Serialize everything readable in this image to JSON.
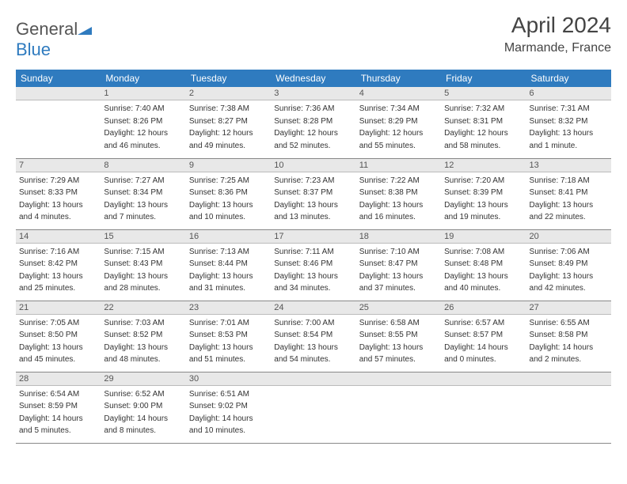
{
  "brand": {
    "general": "General",
    "blue": "Blue"
  },
  "header": {
    "month_title": "April 2024",
    "location": "Marmande, France"
  },
  "weekdays": [
    "Sunday",
    "Monday",
    "Tuesday",
    "Wednesday",
    "Thursday",
    "Friday",
    "Saturday"
  ],
  "colors": {
    "header_bg": "#2f7bbf",
    "daynum_bg": "#e8e8e8",
    "border": "#888"
  },
  "weeks": [
    [
      null,
      {
        "n": "1",
        "sr": "Sunrise: 7:40 AM",
        "ss": "Sunset: 8:26 PM",
        "d1": "Daylight: 12 hours",
        "d2": "and 46 minutes."
      },
      {
        "n": "2",
        "sr": "Sunrise: 7:38 AM",
        "ss": "Sunset: 8:27 PM",
        "d1": "Daylight: 12 hours",
        "d2": "and 49 minutes."
      },
      {
        "n": "3",
        "sr": "Sunrise: 7:36 AM",
        "ss": "Sunset: 8:28 PM",
        "d1": "Daylight: 12 hours",
        "d2": "and 52 minutes."
      },
      {
        "n": "4",
        "sr": "Sunrise: 7:34 AM",
        "ss": "Sunset: 8:29 PM",
        "d1": "Daylight: 12 hours",
        "d2": "and 55 minutes."
      },
      {
        "n": "5",
        "sr": "Sunrise: 7:32 AM",
        "ss": "Sunset: 8:31 PM",
        "d1": "Daylight: 12 hours",
        "d2": "and 58 minutes."
      },
      {
        "n": "6",
        "sr": "Sunrise: 7:31 AM",
        "ss": "Sunset: 8:32 PM",
        "d1": "Daylight: 13 hours",
        "d2": "and 1 minute."
      }
    ],
    [
      {
        "n": "7",
        "sr": "Sunrise: 7:29 AM",
        "ss": "Sunset: 8:33 PM",
        "d1": "Daylight: 13 hours",
        "d2": "and 4 minutes."
      },
      {
        "n": "8",
        "sr": "Sunrise: 7:27 AM",
        "ss": "Sunset: 8:34 PM",
        "d1": "Daylight: 13 hours",
        "d2": "and 7 minutes."
      },
      {
        "n": "9",
        "sr": "Sunrise: 7:25 AM",
        "ss": "Sunset: 8:36 PM",
        "d1": "Daylight: 13 hours",
        "d2": "and 10 minutes."
      },
      {
        "n": "10",
        "sr": "Sunrise: 7:23 AM",
        "ss": "Sunset: 8:37 PM",
        "d1": "Daylight: 13 hours",
        "d2": "and 13 minutes."
      },
      {
        "n": "11",
        "sr": "Sunrise: 7:22 AM",
        "ss": "Sunset: 8:38 PM",
        "d1": "Daylight: 13 hours",
        "d2": "and 16 minutes."
      },
      {
        "n": "12",
        "sr": "Sunrise: 7:20 AM",
        "ss": "Sunset: 8:39 PM",
        "d1": "Daylight: 13 hours",
        "d2": "and 19 minutes."
      },
      {
        "n": "13",
        "sr": "Sunrise: 7:18 AM",
        "ss": "Sunset: 8:41 PM",
        "d1": "Daylight: 13 hours",
        "d2": "and 22 minutes."
      }
    ],
    [
      {
        "n": "14",
        "sr": "Sunrise: 7:16 AM",
        "ss": "Sunset: 8:42 PM",
        "d1": "Daylight: 13 hours",
        "d2": "and 25 minutes."
      },
      {
        "n": "15",
        "sr": "Sunrise: 7:15 AM",
        "ss": "Sunset: 8:43 PM",
        "d1": "Daylight: 13 hours",
        "d2": "and 28 minutes."
      },
      {
        "n": "16",
        "sr": "Sunrise: 7:13 AM",
        "ss": "Sunset: 8:44 PM",
        "d1": "Daylight: 13 hours",
        "d2": "and 31 minutes."
      },
      {
        "n": "17",
        "sr": "Sunrise: 7:11 AM",
        "ss": "Sunset: 8:46 PM",
        "d1": "Daylight: 13 hours",
        "d2": "and 34 minutes."
      },
      {
        "n": "18",
        "sr": "Sunrise: 7:10 AM",
        "ss": "Sunset: 8:47 PM",
        "d1": "Daylight: 13 hours",
        "d2": "and 37 minutes."
      },
      {
        "n": "19",
        "sr": "Sunrise: 7:08 AM",
        "ss": "Sunset: 8:48 PM",
        "d1": "Daylight: 13 hours",
        "d2": "and 40 minutes."
      },
      {
        "n": "20",
        "sr": "Sunrise: 7:06 AM",
        "ss": "Sunset: 8:49 PM",
        "d1": "Daylight: 13 hours",
        "d2": "and 42 minutes."
      }
    ],
    [
      {
        "n": "21",
        "sr": "Sunrise: 7:05 AM",
        "ss": "Sunset: 8:50 PM",
        "d1": "Daylight: 13 hours",
        "d2": "and 45 minutes."
      },
      {
        "n": "22",
        "sr": "Sunrise: 7:03 AM",
        "ss": "Sunset: 8:52 PM",
        "d1": "Daylight: 13 hours",
        "d2": "and 48 minutes."
      },
      {
        "n": "23",
        "sr": "Sunrise: 7:01 AM",
        "ss": "Sunset: 8:53 PM",
        "d1": "Daylight: 13 hours",
        "d2": "and 51 minutes."
      },
      {
        "n": "24",
        "sr": "Sunrise: 7:00 AM",
        "ss": "Sunset: 8:54 PM",
        "d1": "Daylight: 13 hours",
        "d2": "and 54 minutes."
      },
      {
        "n": "25",
        "sr": "Sunrise: 6:58 AM",
        "ss": "Sunset: 8:55 PM",
        "d1": "Daylight: 13 hours",
        "d2": "and 57 minutes."
      },
      {
        "n": "26",
        "sr": "Sunrise: 6:57 AM",
        "ss": "Sunset: 8:57 PM",
        "d1": "Daylight: 14 hours",
        "d2": "and 0 minutes."
      },
      {
        "n": "27",
        "sr": "Sunrise: 6:55 AM",
        "ss": "Sunset: 8:58 PM",
        "d1": "Daylight: 14 hours",
        "d2": "and 2 minutes."
      }
    ],
    [
      {
        "n": "28",
        "sr": "Sunrise: 6:54 AM",
        "ss": "Sunset: 8:59 PM",
        "d1": "Daylight: 14 hours",
        "d2": "and 5 minutes."
      },
      {
        "n": "29",
        "sr": "Sunrise: 6:52 AM",
        "ss": "Sunset: 9:00 PM",
        "d1": "Daylight: 14 hours",
        "d2": "and 8 minutes."
      },
      {
        "n": "30",
        "sr": "Sunrise: 6:51 AM",
        "ss": "Sunset: 9:02 PM",
        "d1": "Daylight: 14 hours",
        "d2": "and 10 minutes."
      },
      null,
      null,
      null,
      null
    ]
  ]
}
